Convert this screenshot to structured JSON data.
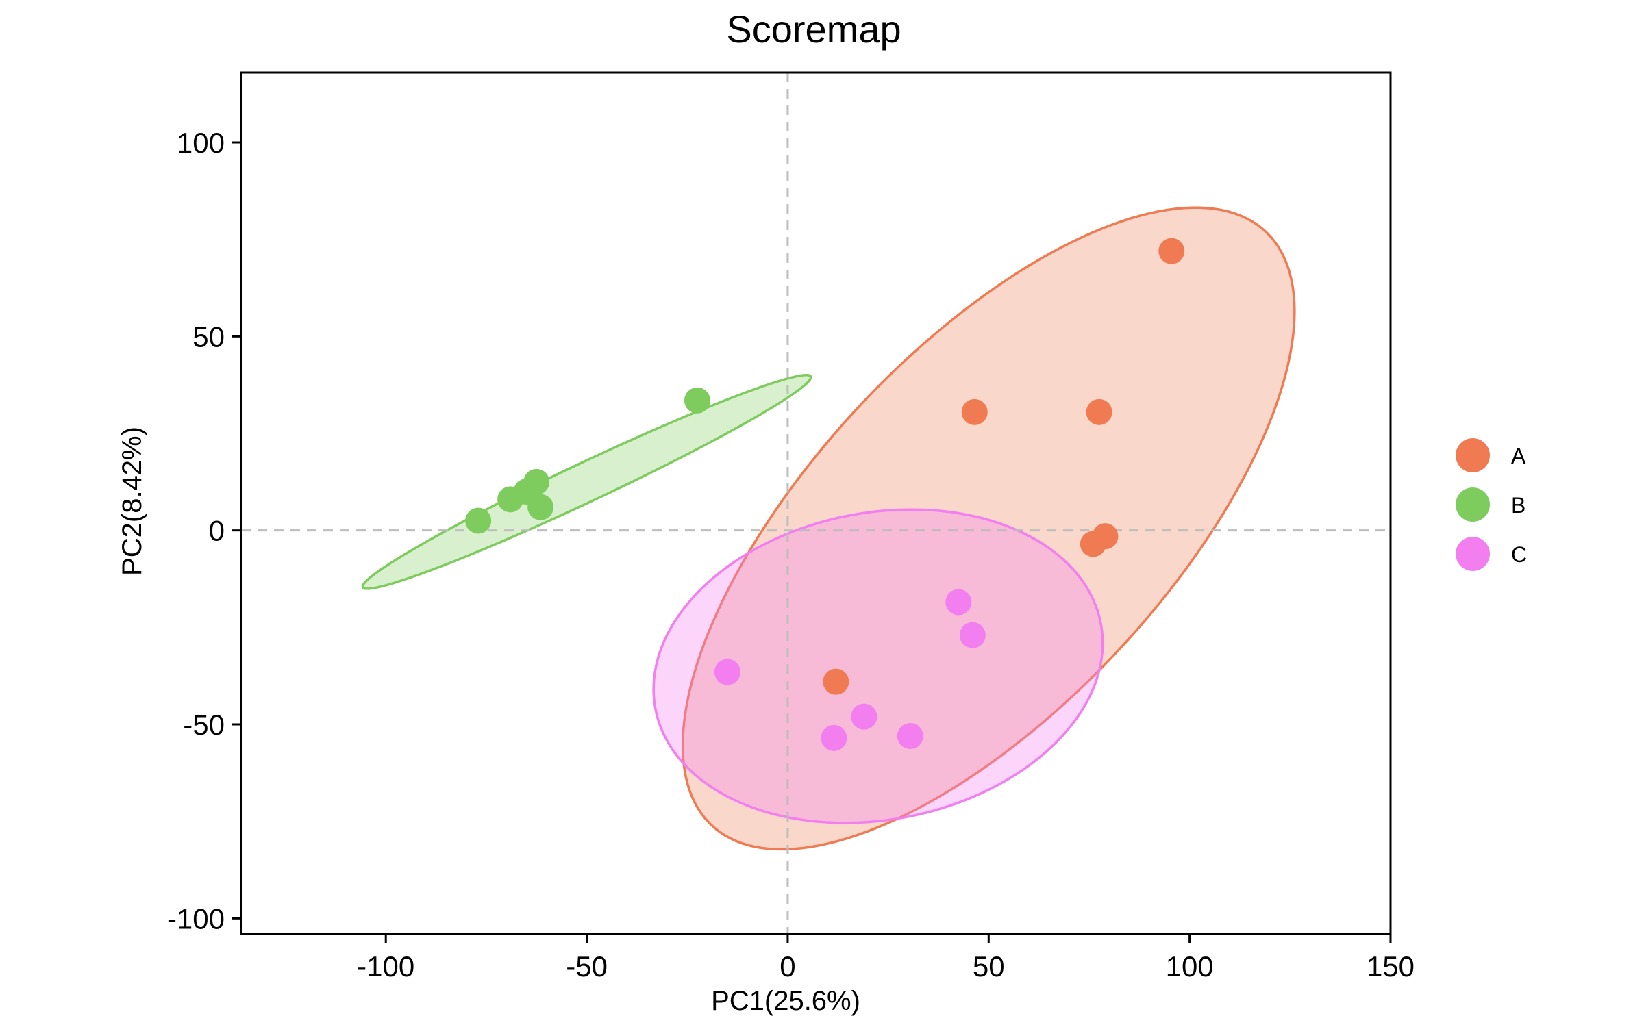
{
  "chart_data": {
    "type": "scatter",
    "title": "Scoremap",
    "xlabel": "PC1(25.6%)",
    "ylabel": "PC2(8.42%)",
    "xlim": [
      -136,
      150
    ],
    "ylim": [
      -104,
      118
    ],
    "xticks": [
      -100,
      -50,
      0,
      50,
      100,
      150
    ],
    "yticks": [
      -100,
      -50,
      0,
      50,
      100
    ],
    "xtick_labels": [
      "-100",
      "-50",
      "0",
      "50",
      "100",
      "150"
    ],
    "ytick_labels": [
      "-100",
      "-50",
      "0",
      "50",
      "100"
    ],
    "grid": false,
    "reference_lines": {
      "x": 0,
      "y": 0,
      "style": "dashed"
    },
    "legend": {
      "position": "right",
      "entries": [
        "A",
        "B",
        "C"
      ]
    },
    "series": [
      {
        "name": "A",
        "color": "#F07B52",
        "fill": "#F7C2AE",
        "x": [
          95.5,
          46.5,
          77.5,
          79,
          76,
          12
        ],
        "y": [
          72,
          30.5,
          30.5,
          -1.5,
          -3.5,
          -39
        ],
        "ellipse": {
          "cx": 50,
          "cy": 0.5,
          "rx": 103,
          "ry": 45,
          "angle_deg": 48.5
        }
      },
      {
        "name": "B",
        "color": "#7FCC5E",
        "fill": "#C9EBB9",
        "x": [
          -77,
          -69,
          -65,
          -62.5,
          -61.5,
          -22.5
        ],
        "y": [
          2.5,
          8,
          10,
          12.5,
          6,
          33.5
        ],
        "ellipse": {
          "cx": -50,
          "cy": 12.5,
          "rx": 62,
          "ry": 5,
          "angle_deg": 26
        }
      },
      {
        "name": "C",
        "color": "#F27EF0",
        "fill": "#FAC8F6",
        "x": [
          -15,
          42.5,
          46,
          19,
          11.5,
          30.5
        ],
        "y": [
          -36.5,
          -18.5,
          -27,
          -48,
          -53.5,
          -53
        ],
        "ellipse": {
          "cx": 22.5,
          "cy": -35,
          "rx": 56.5,
          "ry": 39.5,
          "angle_deg": 12
        }
      }
    ]
  }
}
